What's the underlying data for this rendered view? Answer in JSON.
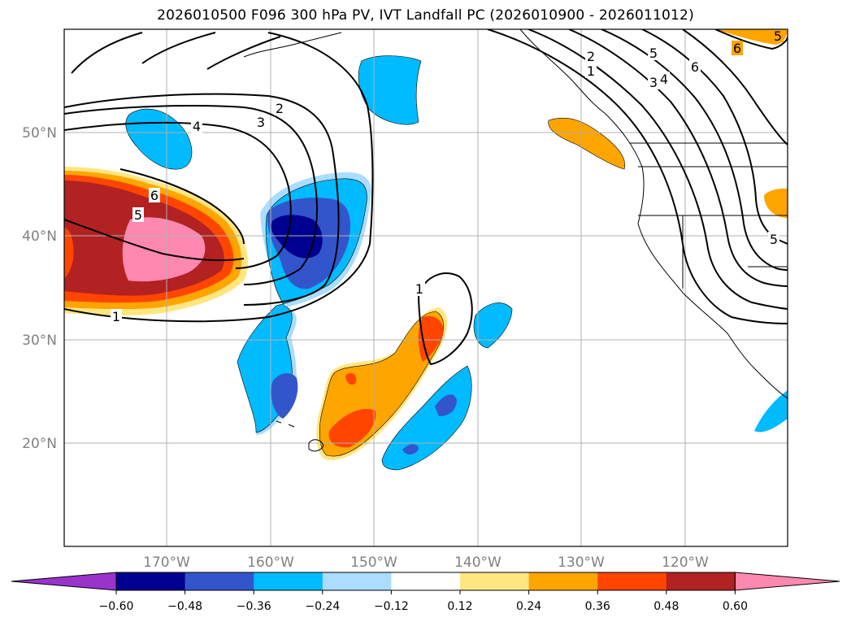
{
  "title": "2026010500 F096 300 hPa PV, IVT Landfall PC (2026010900 - 2026011012)",
  "map": {
    "lon_labels": [
      "170°W",
      "160°W",
      "150°W",
      "140°W",
      "130°W",
      "120°W"
    ],
    "lat_labels": [
      "50°N",
      "40°N",
      "30°N",
      "20°N"
    ]
  },
  "contour_labels": [
    "1",
    "2",
    "3",
    "4",
    "5",
    "6",
    "1",
    "2",
    "3",
    "4",
    "5",
    "6",
    "1",
    "5",
    "5",
    "6"
  ],
  "colorbar": {
    "colors": [
      "#9933cc",
      "#000090",
      "#3355cc",
      "#00bbff",
      "#aaddff",
      "#ffffff",
      "#ffe680",
      "#ffa500",
      "#ff4500",
      "#b22222",
      "#ff88b0"
    ],
    "tick_labels": [
      "−0.60",
      "−0.48",
      "−0.36",
      "−0.24",
      "−0.12",
      "0.12",
      "0.24",
      "0.36",
      "0.48",
      "0.60"
    ]
  }
}
